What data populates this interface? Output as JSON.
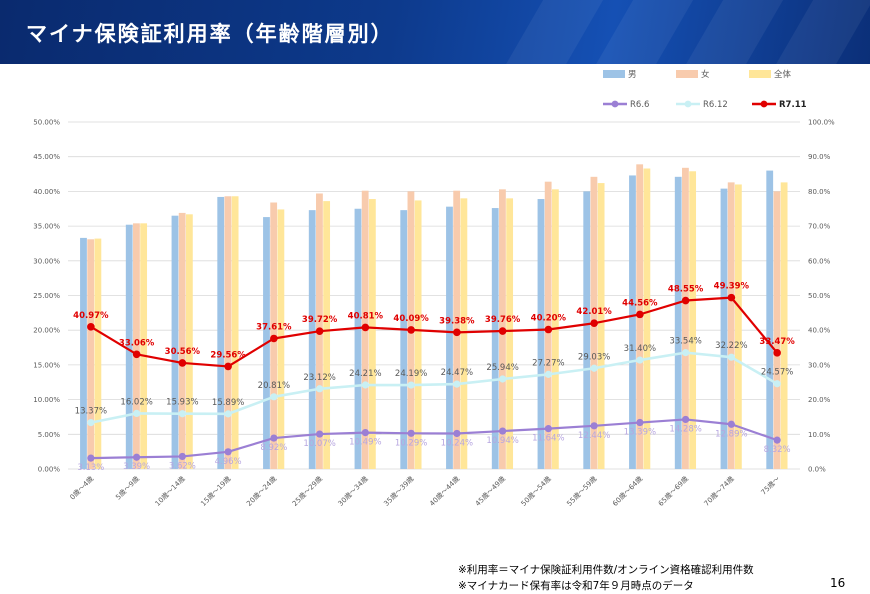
{
  "header": {
    "title": "マイナ保険証利用率（年齢階層別）"
  },
  "footnotes": [
    "※利用率＝マイナ保険証利用件数/オンライン資格確認利用件数",
    "※マイナカード保有率は令和7年９月時点のデータ"
  ],
  "page_number": "16",
  "chart_data": {
    "type": "bar",
    "categories": [
      "0歳～4歳",
      "5歳～9歳",
      "10歳～14歳",
      "15歳～19歳",
      "20歳～24歳",
      "25歳～29歳",
      "30歳～34歳",
      "35歳～39歳",
      "40歳～44歳",
      "45歳～49歳",
      "50歳～54歳",
      "55歳～59歳",
      "60歳～64歳",
      "65歳～69歳",
      "70歳～74歳",
      "75歳～"
    ],
    "ylim_left": [
      0,
      50
    ],
    "ylim_right": [
      0,
      100
    ],
    "left_ticks": [
      "0.00%",
      "5.00%",
      "10.00%",
      "15.00%",
      "20.00%",
      "25.00%",
      "30.00%",
      "35.00%",
      "40.00%",
      "45.00%",
      "50.00%"
    ],
    "right_ticks": [
      "0.0%",
      "10.0%",
      "20.0%",
      "30.0%",
      "40.0%",
      "50.0%",
      "60.0%",
      "70.0%",
      "80.0%",
      "90.0%",
      "100.0%"
    ],
    "grid": true,
    "legend_bars_position": "top-right",
    "legend_lines_position": "top-right",
    "bar_series": [
      {
        "name": "男",
        "color": "#9dc3e6",
        "axis": "left",
        "values": [
          33.3,
          35.2,
          36.5,
          39.2,
          36.3,
          37.3,
          37.5,
          37.3,
          37.8,
          37.6,
          38.9,
          40.0,
          42.3,
          42.1,
          40.4,
          43.0
        ]
      },
      {
        "name": "女",
        "color": "#f8cbad",
        "axis": "left",
        "values": [
          33.1,
          35.4,
          36.9,
          39.3,
          38.4,
          39.7,
          40.1,
          40.0,
          40.1,
          40.3,
          41.4,
          42.1,
          43.9,
          43.4,
          41.3,
          40.0
        ]
      },
      {
        "name": "全体",
        "color": "#ffe699",
        "axis": "left",
        "values": [
          33.2,
          35.4,
          36.7,
          39.3,
          37.4,
          38.6,
          38.9,
          38.7,
          39.0,
          39.0,
          40.3,
          41.2,
          43.3,
          42.9,
          41.0,
          41.3
        ]
      }
    ],
    "line_series": [
      {
        "name": "R6.6",
        "color": "#9b7fd4",
        "axis": "right",
        "values": [
          3.13,
          3.39,
          3.62,
          4.96,
          8.92,
          10.07,
          10.49,
          10.29,
          10.24,
          10.94,
          11.64,
          12.44,
          13.39,
          14.28,
          12.89,
          8.32
        ],
        "labels": [
          "3.13%",
          "3.39%",
          "3.62%",
          "4.96%",
          "8.92%",
          "10.07%",
          "10.49%",
          "10.29%",
          "10.24%",
          "10.94%",
          "11.64%",
          "12.44%",
          "13.39%",
          "14.28%",
          "12.89%",
          "8.32%"
        ]
      },
      {
        "name": "R6.12",
        "color": "#c9f0f4",
        "axis": "right",
        "values": [
          13.37,
          16.02,
          15.93,
          15.89,
          20.81,
          23.12,
          24.21,
          24.19,
          24.47,
          25.94,
          27.27,
          29.03,
          31.4,
          33.54,
          32.22,
          24.57
        ],
        "labels": [
          "13.37%",
          "16.02%",
          "15.93%",
          "15.89%",
          "20.81%",
          "23.12%",
          "24.21%",
          "24.19%",
          "24.47%",
          "25.94%",
          "27.27%",
          "29.03%",
          "31.40%",
          "33.54%",
          "32.22%",
          "24.57%"
        ]
      },
      {
        "name": "R7.11",
        "color": "#e00000",
        "axis": "right",
        "values": [
          40.97,
          33.06,
          30.56,
          29.56,
          37.61,
          39.72,
          40.81,
          40.09,
          39.38,
          39.76,
          40.2,
          42.01,
          44.56,
          48.55,
          49.39,
          33.47
        ],
        "labels": [
          "40.97%",
          "33.06%",
          "30.56%",
          "29.56%",
          "37.61%",
          "39.72%",
          "40.81%",
          "40.09%",
          "39.38%",
          "39.76%",
          "40.20%",
          "42.01%",
          "44.56%",
          "48.55%",
          "49.39%",
          "33.47%"
        ]
      }
    ]
  }
}
